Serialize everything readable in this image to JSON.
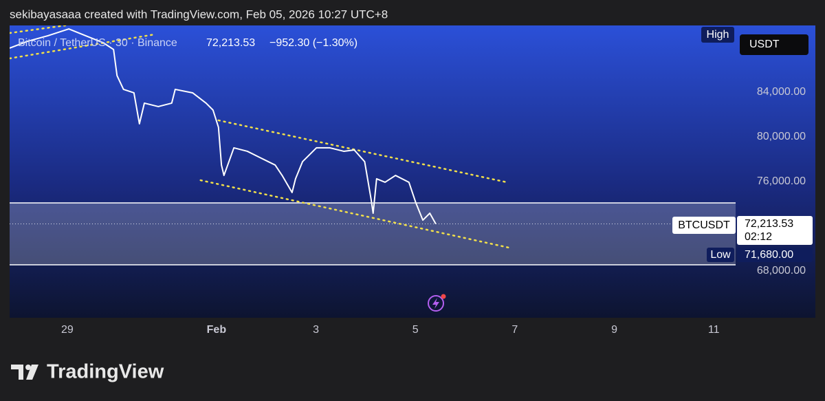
{
  "header": {
    "author_line": "sekibayasaaa created with TradingView.com, Feb 05, 2026 10:27 UTC+8"
  },
  "chart_data": {
    "type": "line",
    "symbol": "Bitcoin / TetherUS · 30 · Binance",
    "last": "72,213.53",
    "change": "−952.30 (−1.30%)",
    "currency": "USDT",
    "high_tag": "High",
    "low_tag": "Low",
    "ticker": "BTCUSDT",
    "countdown": "02:12",
    "color": "#ffffff",
    "x": [
      27.84,
      28.2,
      28.61,
      29.03,
      29.3,
      29.72,
      29.93,
      30.0,
      30.13,
      30.34,
      30.45,
      30.55,
      30.83,
      31.1,
      31.17,
      31.52,
      31.79,
      31.93,
      32.04,
      32.1,
      32.15,
      32.35,
      32.62,
      32.9,
      33.18,
      33.32,
      33.52,
      33.59,
      33.73,
      34.01,
      34.28,
      34.56,
      34.77,
      34.98,
      35.11,
      35.15,
      35.22,
      35.39,
      35.6,
      35.87,
      36.01,
      36.15,
      36.29,
      36.41
    ],
    "values": [
      87940,
      88550,
      89050,
      89660,
      89170,
      88430,
      87820,
      85480,
      84250,
      83940,
      81170,
      83020,
      82710,
      83020,
      84250,
      83940,
      83020,
      82400,
      80860,
      77480,
      76550,
      79020,
      78710,
      78090,
      77480,
      76550,
      75020,
      76250,
      77780,
      79020,
      79020,
      78710,
      78830,
      77780,
      74400,
      73170,
      76250,
      75940,
      76550,
      75940,
      74090,
      72550,
      73170,
      72213.53
    ],
    "last_price": {
      "value": 72213.53,
      "label": "72,213.53"
    },
    "low_price": {
      "value": 71680,
      "label": "71,680.00"
    },
    "zone": {
      "top": 74090,
      "bottom": 68550
    },
    "trend_lines": [
      {
        "x": [
          32.04,
          37.84
        ],
        "values": [
          81480,
          75940
        ]
      },
      {
        "x": [
          31.68,
          37.88
        ],
        "values": [
          76120,
          70090
        ]
      },
      {
        "x": [
          27.84,
          28.96
        ],
        "values": [
          89290,
          89970
        ]
      },
      {
        "x": [
          27.84,
          30.76
        ],
        "values": [
          87020,
          89170
        ]
      }
    ],
    "xlim": [
      27.84,
      42.44
    ],
    "ylim": [
      63938,
      89969
    ],
    "xticks": [
      {
        "value": 29,
        "label": "29"
      },
      {
        "value": 32,
        "label": "Feb"
      },
      {
        "value": 34,
        "label": "3"
      },
      {
        "value": 36,
        "label": "5"
      },
      {
        "value": 38,
        "label": "7"
      },
      {
        "value": 40,
        "label": "9"
      },
      {
        "value": 42,
        "label": "11"
      }
    ],
    "yticks": [
      {
        "value": 84000,
        "label": "84,000.00"
      },
      {
        "value": 80000,
        "label": "80,000.00"
      },
      {
        "value": 76000,
        "label": "76,000.00"
      },
      {
        "value": 68000,
        "label": "68,000.00"
      }
    ]
  },
  "footer": {
    "brand": "TradingView"
  }
}
